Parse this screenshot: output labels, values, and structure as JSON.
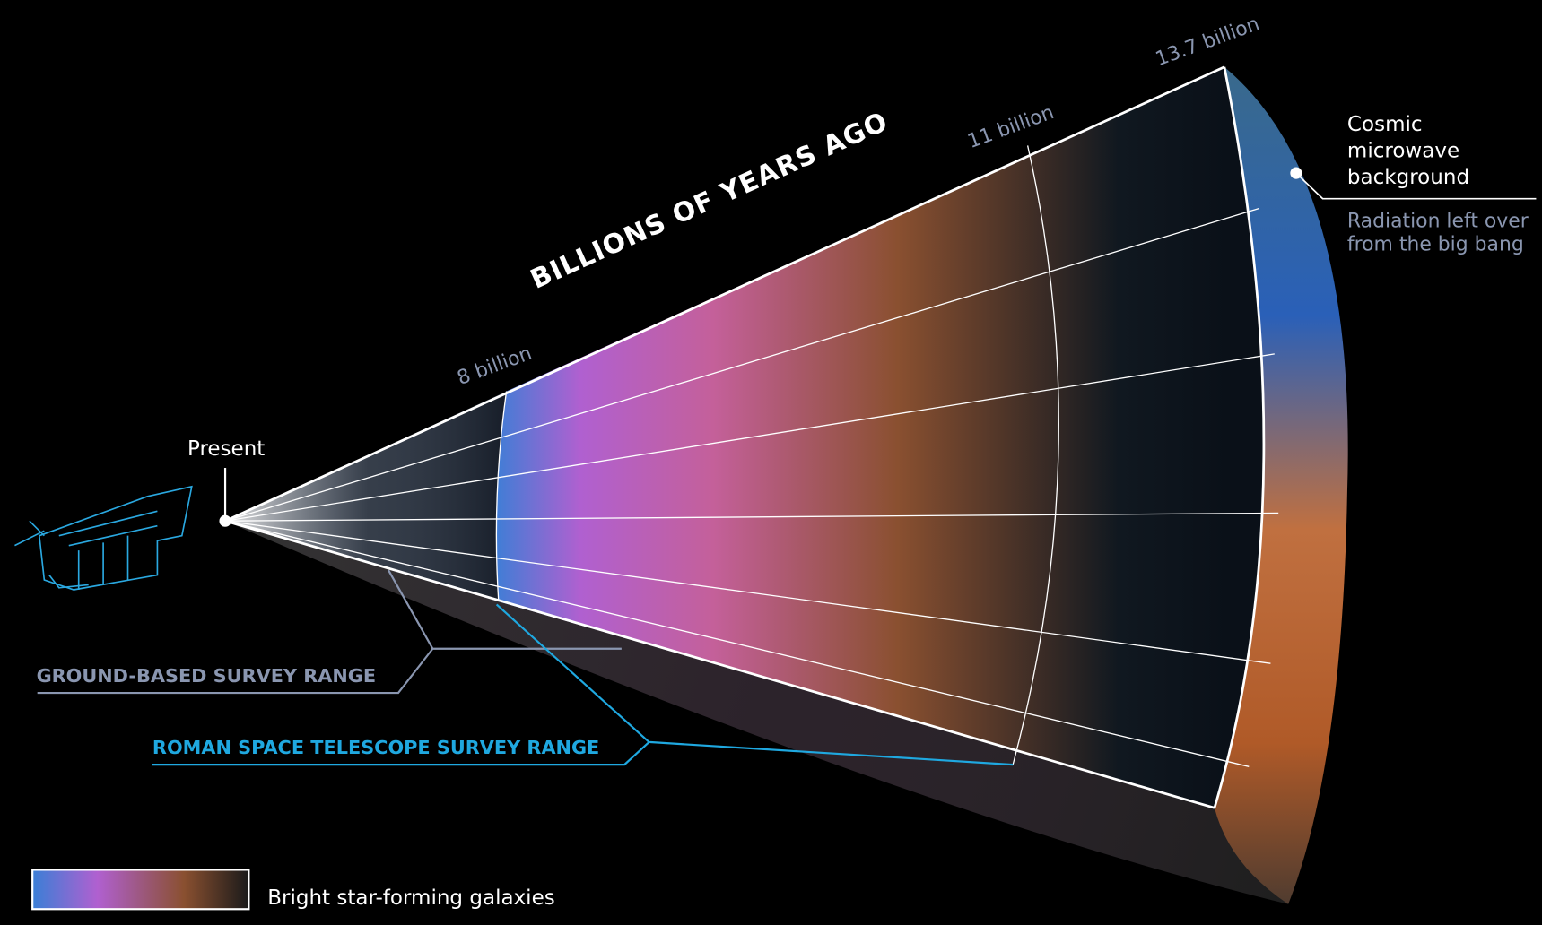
{
  "title": "BILLIONS OF YEARS AGO",
  "time_labels": [
    "8 billion",
    "11 billion",
    "13.7 billion"
  ],
  "present_label": "Present",
  "cmb": {
    "name": [
      "Cosmic",
      "microwave",
      "background"
    ],
    "description": [
      "Radiation left over",
      "from the big bang"
    ]
  },
  "ranges": {
    "ground": "GROUND-BASED SURVEY RANGE",
    "roman": "ROMAN SPACE TELESCOPE SURVEY RANGE"
  },
  "legend": "Bright star-forming galaxies"
}
